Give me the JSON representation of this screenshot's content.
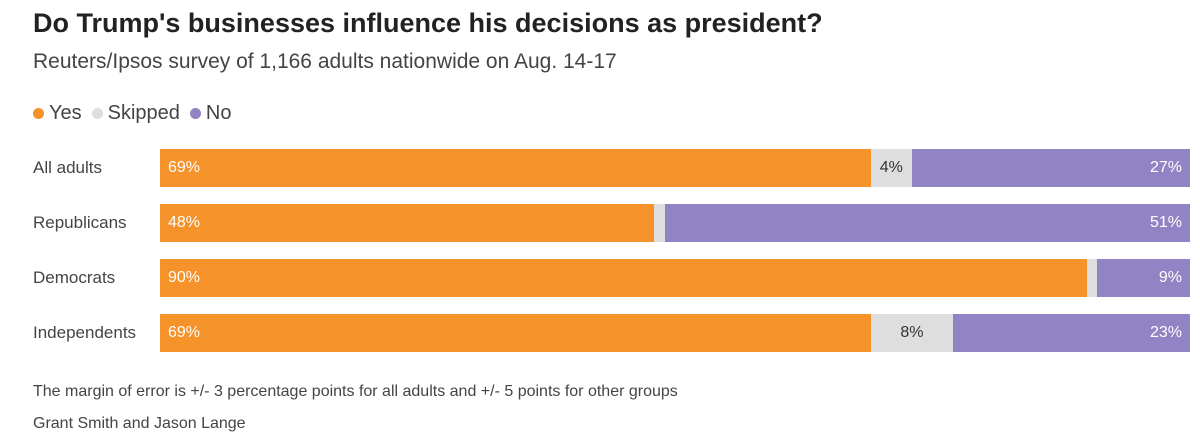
{
  "chart_data": {
    "type": "bar",
    "orientation": "horizontal",
    "stacked": true,
    "title": "Do Trump's businesses influence his decisions as president?",
    "subtitle": "Reuters/Ipsos survey of 1,166 adults nationwide on Aug. 14-17",
    "categories": [
      "All adults",
      "Republicans",
      "Democrats",
      "Independents"
    ],
    "series": [
      {
        "name": "Yes",
        "color": "#F5922A",
        "values": [
          69,
          48,
          90,
          69
        ],
        "labels": [
          "69%",
          "48%",
          "90%",
          "69%"
        ]
      },
      {
        "name": "Skipped",
        "color": "#DEDEDE",
        "values": [
          4,
          1,
          1,
          8
        ],
        "labels": [
          "4%",
          "",
          "",
          "8%"
        ]
      },
      {
        "name": "No",
        "color": "#9283C4",
        "values": [
          27,
          51,
          9,
          23
        ],
        "labels": [
          "27%",
          "51%",
          "9%",
          "23%"
        ]
      }
    ],
    "xlim": [
      0,
      100
    ],
    "legend_position": "top-left",
    "grid": false
  },
  "footnote": "The margin of error is +/- 3 percentage points for all adults and +/- 5 points for other groups",
  "byline": "Grant Smith and Jason Lange"
}
